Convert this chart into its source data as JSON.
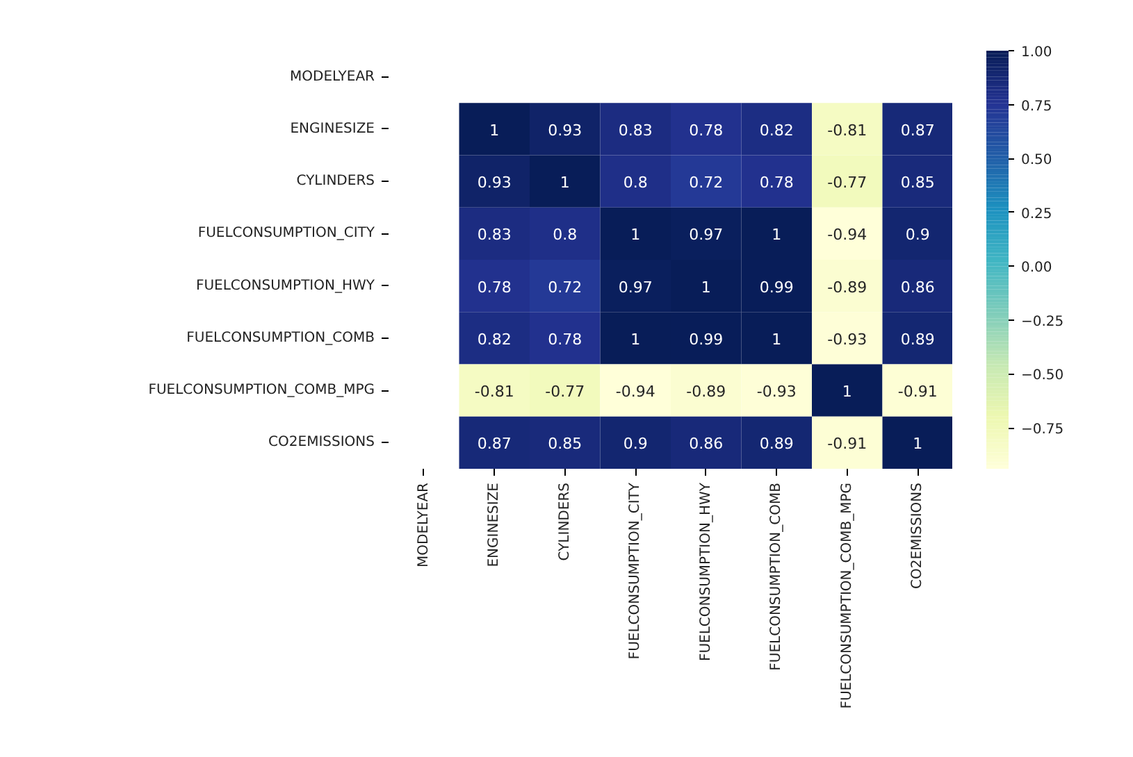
{
  "chart_data": {
    "type": "heatmap",
    "categories": [
      "MODELYEAR",
      "ENGINESIZE",
      "CYLINDERS",
      "FUELCONSUMPTION_CITY",
      "FUELCONSUMPTION_HWY",
      "FUELCONSUMPTION_COMB",
      "FUELCONSUMPTION_COMB_MPG",
      "CO2EMISSIONS"
    ],
    "y_categories": [
      "MODELYEAR",
      "ENGINESIZE",
      "CYLINDERS",
      "FUELCONSUMPTION_CITY",
      "FUELCONSUMPTION_HWY",
      "FUELCONSUMPTION_COMB",
      "FUELCONSUMPTION_COMB_MPG",
      "CO2EMISSIONS"
    ],
    "cells": [
      [
        null,
        null,
        null,
        null,
        null,
        null,
        null,
        null
      ],
      [
        null,
        1,
        0.93,
        0.83,
        0.78,
        0.82,
        -0.81,
        0.87
      ],
      [
        null,
        0.93,
        1,
        0.8,
        0.72,
        0.78,
        -0.77,
        0.85
      ],
      [
        null,
        0.83,
        0.8,
        1,
        0.97,
        1,
        -0.94,
        0.9
      ],
      [
        null,
        0.78,
        0.72,
        0.97,
        1,
        0.99,
        -0.89,
        0.86
      ],
      [
        null,
        0.82,
        0.78,
        1,
        0.99,
        1,
        -0.93,
        0.89
      ],
      [
        null,
        -0.81,
        -0.77,
        -0.94,
        -0.89,
        -0.93,
        1,
        -0.91
      ],
      [
        null,
        0.87,
        0.85,
        0.9,
        0.86,
        0.89,
        -0.91,
        1
      ]
    ],
    "clim": [
      -0.94,
      1
    ],
    "cticks": [
      {
        "value": 1,
        "label": "1.00"
      },
      {
        "value": 0.75,
        "label": "0.75"
      },
      {
        "value": 0.5,
        "label": "0.50"
      },
      {
        "value": 0.25,
        "label": "0.25"
      },
      {
        "value": 0,
        "label": "0.00"
      },
      {
        "value": -0.25,
        "label": "−0.25"
      },
      {
        "value": -0.5,
        "label": "−0.50"
      },
      {
        "value": -0.75,
        "label": "−0.75"
      }
    ],
    "data_labels": true
  }
}
